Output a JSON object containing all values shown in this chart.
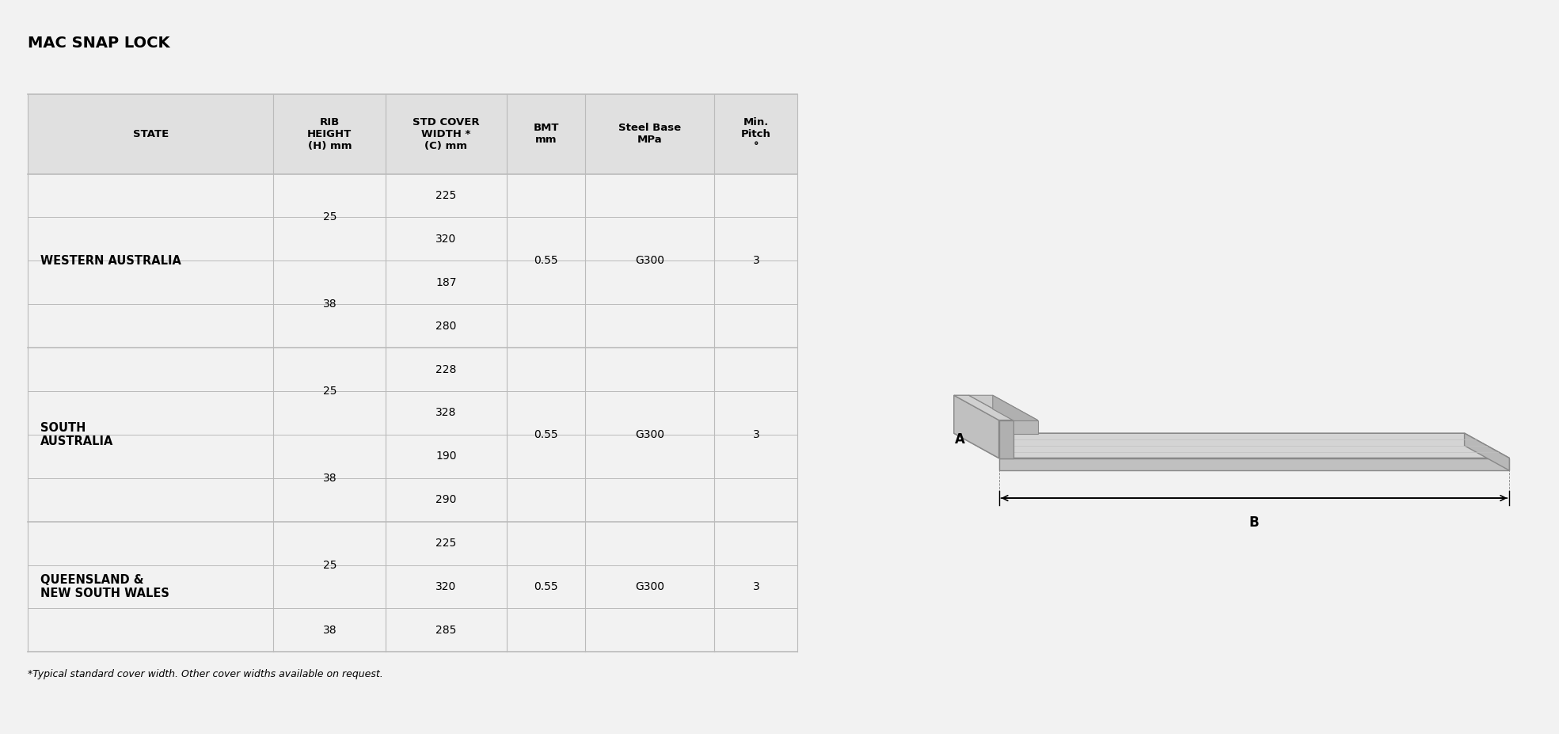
{
  "title": "MAC SNAP LOCK",
  "bg_color": "#f2f2f2",
  "header_bg": "#e0e0e0",
  "line_color": "#bbbbbb",
  "header_row_line1": [
    "STATE",
    "RIB",
    "STD COVER",
    "BMT",
    "Steel Base",
    "Min."
  ],
  "header_row_line2": [
    "",
    "HEIGHT",
    "WIDTH *",
    "mm",
    "MPa",
    "Pitch"
  ],
  "header_row_line3": [
    "",
    "(H) mm",
    "(C) mm",
    "",
    "",
    "°"
  ],
  "footnote": "*Typical standard cover width. Other cover widths available on request.",
  "states": [
    {
      "name": "WESTERN AUSTRALIA",
      "name_lines": [
        "WESTERN AUSTRALIA"
      ],
      "rows": [
        {
          "rib": "25",
          "cover": "225",
          "bmt": "0.55",
          "steel": "G300",
          "pitch": "3"
        },
        {
          "rib": "",
          "cover": "320",
          "bmt": "",
          "steel": "",
          "pitch": ""
        },
        {
          "rib": "38",
          "cover": "187",
          "bmt": "",
          "steel": "",
          "pitch": ""
        },
        {
          "rib": "",
          "cover": "280",
          "bmt": "",
          "steel": "",
          "pitch": ""
        }
      ]
    },
    {
      "name": "SOUTH\nAUSTRALIA",
      "name_lines": [
        "SOUTH",
        "AUSTRALIA"
      ],
      "rows": [
        {
          "rib": "25",
          "cover": "228",
          "bmt": "0.55",
          "steel": "G300",
          "pitch": "3"
        },
        {
          "rib": "",
          "cover": "328",
          "bmt": "",
          "steel": "",
          "pitch": ""
        },
        {
          "rib": "38",
          "cover": "190",
          "bmt": "",
          "steel": "",
          "pitch": ""
        },
        {
          "rib": "",
          "cover": "290",
          "bmt": "",
          "steel": "",
          "pitch": ""
        }
      ]
    },
    {
      "name": "QUEENSLAND &\nNEW SOUTH WALES",
      "name_lines": [
        "QUEENSLAND &",
        "NEW SOUTH WALES"
      ],
      "rows": [
        {
          "rib": "25",
          "cover": "225",
          "bmt": "0.55",
          "steel": "G300",
          "pitch": "3"
        },
        {
          "rib": "",
          "cover": "320",
          "bmt": "",
          "steel": "",
          "pitch": ""
        },
        {
          "rib": "38",
          "cover": "285",
          "bmt": "",
          "steel": "",
          "pitch": ""
        }
      ]
    }
  ],
  "title_fontsize": 14,
  "header_fontsize": 9.5,
  "cell_fontsize": 10,
  "state_fontsize": 10.5,
  "footnote_fontsize": 9
}
